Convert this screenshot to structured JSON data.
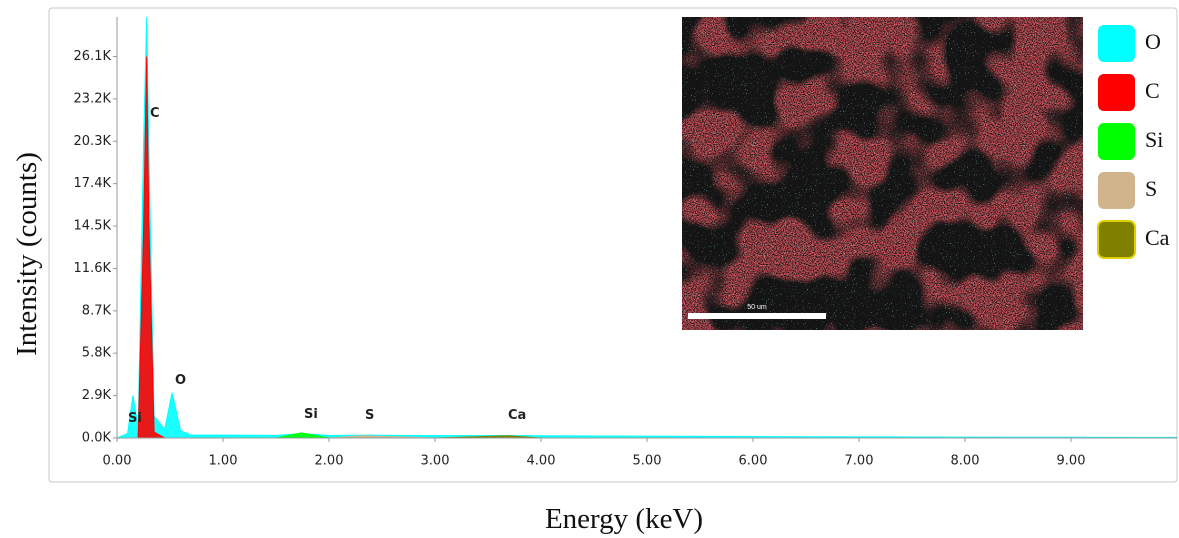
{
  "chart_data": {
    "type": "area",
    "x_label": "Energy (keV)",
    "y_label": "Intensity (counts)",
    "x": [
      0,
      0.1,
      0.15,
      0.2,
      0.25,
      0.28,
      0.3,
      0.35,
      0.45,
      0.52,
      0.6,
      0.7,
      1.0,
      1.5,
      1.74,
      2.0,
      2.31,
      3.0,
      3.69,
      4.0,
      5.0,
      6.0,
      7.0,
      8.0,
      9.0,
      10.0
    ],
    "series": [
      {
        "name": "O",
        "color": "#00ffff",
        "values": [
          0,
          300,
          2900,
          800,
          20000,
          28800,
          20000,
          1500,
          600,
          3100,
          500,
          200,
          200,
          180,
          300,
          170,
          200,
          160,
          170,
          150,
          130,
          100,
          80,
          60,
          50,
          40
        ]
      },
      {
        "name": "C",
        "color": "#ff0000",
        "values": [
          null,
          null,
          null,
          200,
          14000,
          26100,
          15000,
          400,
          0,
          null,
          null,
          null,
          null,
          null,
          null,
          null,
          null,
          null,
          null,
          null,
          null,
          null,
          null,
          null,
          null,
          null
        ]
      },
      {
        "name": "Si",
        "color": "#00ff00",
        "values": [
          null,
          null,
          null,
          null,
          null,
          null,
          null,
          null,
          null,
          null,
          null,
          null,
          null,
          0,
          350,
          0,
          null,
          null,
          null,
          null,
          null,
          null,
          null,
          null,
          null,
          null
        ]
      },
      {
        "name": "S",
        "color": "#d2b48c",
        "values": [
          null,
          null,
          null,
          null,
          null,
          null,
          null,
          null,
          null,
          null,
          null,
          null,
          null,
          null,
          null,
          0,
          150,
          0,
          null,
          null,
          null,
          null,
          null,
          null,
          null,
          null
        ]
      },
      {
        "name": "Ca",
        "color": "#808000",
        "values": [
          null,
          null,
          null,
          null,
          null,
          null,
          null,
          null,
          null,
          null,
          null,
          null,
          null,
          null,
          null,
          null,
          null,
          0,
          150,
          0,
          null,
          null,
          null,
          null,
          null,
          null
        ]
      }
    ],
    "xlim": [
      0,
      10
    ],
    "ylim": [
      0,
      28800
    ],
    "xticks": [
      {
        "value": 0,
        "label": "0.00"
      },
      {
        "value": 1,
        "label": "1.00"
      },
      {
        "value": 2,
        "label": "2.00"
      },
      {
        "value": 3,
        "label": "3.00"
      },
      {
        "value": 4,
        "label": "4.00"
      },
      {
        "value": 5,
        "label": "5.00"
      },
      {
        "value": 6,
        "label": "6.00"
      },
      {
        "value": 7,
        "label": "7.00"
      },
      {
        "value": 8,
        "label": "8.00"
      },
      {
        "value": 9,
        "label": "9.00"
      }
    ],
    "yticks": [
      {
        "value": 0,
        "label": "0.0K"
      },
      {
        "value": 2900,
        "label": "2.9K"
      },
      {
        "value": 5800,
        "label": "5.8K"
      },
      {
        "value": 8700,
        "label": "8.7K"
      },
      {
        "value": 11600,
        "label": "11.6K"
      },
      {
        "value": 14500,
        "label": "14.5K"
      },
      {
        "value": 17400,
        "label": "17.4K"
      },
      {
        "value": 20300,
        "label": "20.3K"
      },
      {
        "value": 23200,
        "label": "23.2K"
      },
      {
        "value": 26100,
        "label": "26.1K"
      }
    ],
    "peak_labels": [
      "C",
      "O",
      "Si",
      "S",
      "Ca",
      "Si"
    ],
    "scale_bar": "50 um"
  }
}
